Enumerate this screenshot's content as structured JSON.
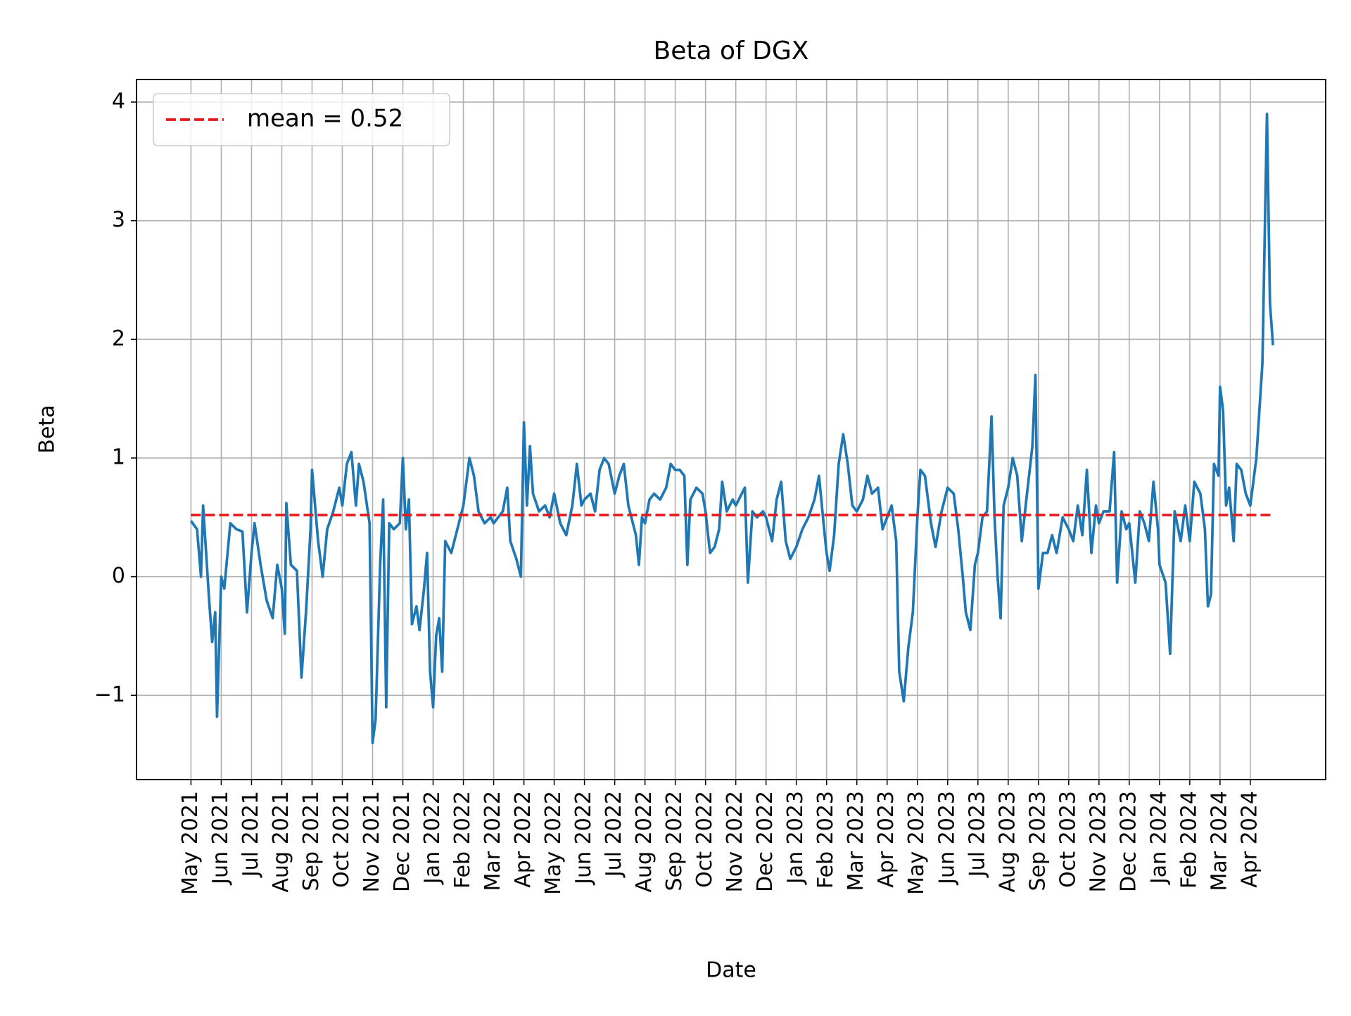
{
  "chart_data": {
    "type": "line",
    "title": "Beta of DGX",
    "x_label": "Date",
    "y_label": "Beta",
    "x": [
      0,
      0.2,
      0.33,
      0.4,
      0.6,
      0.7,
      0.8,
      0.86,
      1.0,
      1.1,
      1.3,
      1.5,
      1.7,
      1.85,
      2.0,
      2.1,
      2.3,
      2.5,
      2.7,
      2.85,
      3.0,
      3.1,
      3.15,
      3.3,
      3.5,
      3.65,
      3.8,
      3.95,
      4.0,
      4.2,
      4.35,
      4.5,
      4.7,
      4.9,
      5.0,
      5.15,
      5.3,
      5.45,
      5.55,
      5.7,
      5.9,
      6.0,
      6.1,
      6.25,
      6.35,
      6.45,
      6.55,
      6.7,
      6.9,
      7.0,
      7.1,
      7.2,
      7.3,
      7.45,
      7.55,
      7.7,
      7.8,
      7.9,
      8.0,
      8.1,
      8.2,
      8.3,
      8.4,
      8.6,
      8.8,
      9.0,
      9.1,
      9.2,
      9.35,
      9.5,
      9.7,
      9.9,
      10.0,
      10.3,
      10.45,
      10.55,
      10.75,
      10.9,
      11.0,
      11.1,
      11.2,
      11.3,
      11.5,
      11.7,
      11.85,
      12.0,
      12.2,
      12.4,
      12.6,
      12.75,
      12.9,
      13.0,
      13.2,
      13.35,
      13.5,
      13.65,
      13.8,
      14.0,
      14.15,
      14.3,
      14.45,
      14.6,
      14.7,
      14.8,
      14.9,
      15.0,
      15.15,
      15.3,
      15.5,
      15.7,
      15.85,
      16.0,
      16.15,
      16.3,
      16.4,
      16.5,
      16.7,
      16.9,
      17.0,
      17.15,
      17.3,
      17.45,
      17.55,
      17.7,
      17.9,
      18.0,
      18.3,
      18.4,
      18.55,
      18.7,
      18.9,
      19.0,
      19.2,
      19.35,
      19.5,
      19.65,
      19.8,
      20.0,
      20.2,
      20.4,
      20.6,
      20.75,
      20.9,
      21.0,
      21.1,
      21.25,
      21.4,
      21.55,
      21.7,
      21.85,
      22.0,
      22.2,
      22.35,
      22.5,
      22.7,
      22.85,
      23.0,
      23.15,
      23.3,
      23.4,
      23.55,
      23.7,
      23.85,
      24.0,
      24.1,
      24.25,
      24.45,
      24.6,
      24.8,
      25.0,
      25.2,
      25.35,
      25.5,
      25.6,
      25.75,
      25.9,
      26.0,
      26.15,
      26.3,
      26.45,
      26.55,
      26.65,
      26.75,
      26.85,
      27.0,
      27.15,
      27.3,
      27.45,
      27.6,
      27.8,
      27.9,
      28.0,
      28.15,
      28.3,
      28.45,
      28.6,
      28.8,
      29.0,
      29.15,
      29.3,
      29.45,
      29.6,
      29.75,
      29.9,
      30.0,
      30.15,
      30.35,
      30.5,
      30.6,
      30.75,
      30.9,
      31.0,
      31.2,
      31.35,
      31.5,
      31.65,
      31.8,
      31.95,
      32.0,
      32.2,
      32.35,
      32.5,
      32.7,
      32.85,
      33.0,
      33.15,
      33.35,
      33.5,
      33.6,
      33.7,
      33.8,
      33.95,
      34.0,
      34.1,
      34.2,
      34.3,
      34.45,
      34.55,
      34.7,
      34.85,
      35.0,
      35.2,
      35.4,
      35.55,
      35.65,
      35.75
    ],
    "series": [
      {
        "color": "#1f77b4",
        "values": [
          0.47,
          0.4,
          0.0,
          0.6,
          -0.2,
          -0.55,
          -0.3,
          -1.18,
          0.0,
          -0.1,
          0.45,
          0.4,
          0.38,
          -0.3,
          0.2,
          0.45,
          0.1,
          -0.2,
          -0.35,
          0.1,
          -0.1,
          -0.48,
          0.62,
          0.1,
          0.05,
          -0.85,
          -0.3,
          0.4,
          0.9,
          0.3,
          0.0,
          0.4,
          0.55,
          0.75,
          0.6,
          0.95,
          1.05,
          0.6,
          0.95,
          0.8,
          0.45,
          -1.4,
          -1.2,
          0.1,
          0.65,
          -1.1,
          0.45,
          0.4,
          0.45,
          1.0,
          0.4,
          0.65,
          -0.4,
          -0.25,
          -0.45,
          -0.1,
          0.2,
          -0.8,
          -1.1,
          -0.5,
          -0.35,
          -0.8,
          0.3,
          0.2,
          0.4,
          0.6,
          0.8,
          1.0,
          0.85,
          0.55,
          0.45,
          0.5,
          0.45,
          0.55,
          0.75,
          0.3,
          0.15,
          0.0,
          1.3,
          0.6,
          1.1,
          0.7,
          0.55,
          0.6,
          0.5,
          0.7,
          0.45,
          0.35,
          0.6,
          0.95,
          0.6,
          0.65,
          0.7,
          0.55,
          0.9,
          1.0,
          0.95,
          0.7,
          0.85,
          0.95,
          0.6,
          0.45,
          0.35,
          0.1,
          0.5,
          0.45,
          0.65,
          0.7,
          0.65,
          0.75,
          0.95,
          0.9,
          0.9,
          0.85,
          0.1,
          0.65,
          0.75,
          0.7,
          0.55,
          0.2,
          0.25,
          0.4,
          0.8,
          0.55,
          0.65,
          0.6,
          0.75,
          -0.05,
          0.55,
          0.5,
          0.55,
          0.5,
          0.3,
          0.65,
          0.8,
          0.3,
          0.15,
          0.25,
          0.4,
          0.5,
          0.65,
          0.85,
          0.45,
          0.2,
          0.05,
          0.35,
          0.95,
          1.2,
          0.95,
          0.6,
          0.55,
          0.65,
          0.85,
          0.7,
          0.75,
          0.4,
          0.5,
          0.6,
          0.3,
          -0.8,
          -1.05,
          -0.6,
          -0.3,
          0.5,
          0.9,
          0.85,
          0.45,
          0.25,
          0.55,
          0.75,
          0.7,
          0.4,
          0.0,
          -0.3,
          -0.45,
          0.1,
          0.2,
          0.5,
          0.55,
          1.35,
          0.5,
          0.0,
          -0.35,
          0.6,
          0.75,
          1.0,
          0.85,
          0.3,
          0.65,
          1.1,
          1.7,
          -0.1,
          0.2,
          0.2,
          0.35,
          0.2,
          0.5,
          0.4,
          0.3,
          0.6,
          0.35,
          0.9,
          0.2,
          0.6,
          0.45,
          0.55,
          0.55,
          1.05,
          -0.05,
          0.55,
          0.4,
          0.45,
          -0.05,
          0.55,
          0.45,
          0.3,
          0.8,
          0.4,
          0.1,
          -0.05,
          -0.65,
          0.55,
          0.3,
          0.6,
          0.3,
          0.8,
          0.7,
          0.4,
          -0.25,
          -0.15,
          0.95,
          0.85,
          1.6,
          1.4,
          0.6,
          0.75,
          0.3,
          0.95,
          0.9,
          0.7,
          0.6,
          1.0,
          1.8,
          3.9,
          2.3,
          1.95
        ]
      }
    ],
    "mean_line": {
      "label": "mean = 0.52",
      "value": 0.52,
      "color": "#e41a1c"
    },
    "xlim": [
      -1.8,
      37.49
    ],
    "ylim": [
      -1.71,
      4.19
    ],
    "xticks": [
      {
        "value": 0,
        "label": "May 2021"
      },
      {
        "value": 1,
        "label": "Jun 2021"
      },
      {
        "value": 2,
        "label": "Jul 2021"
      },
      {
        "value": 3,
        "label": "Aug 2021"
      },
      {
        "value": 4,
        "label": "Sep 2021"
      },
      {
        "value": 5,
        "label": "Oct 2021"
      },
      {
        "value": 6,
        "label": "Nov 2021"
      },
      {
        "value": 7,
        "label": "Dec 2021"
      },
      {
        "value": 8,
        "label": "Jan 2022"
      },
      {
        "value": 9,
        "label": "Feb 2022"
      },
      {
        "value": 10,
        "label": "Mar 2022"
      },
      {
        "value": 11,
        "label": "Apr 2022"
      },
      {
        "value": 12,
        "label": "May 2022"
      },
      {
        "value": 13,
        "label": "Jun 2022"
      },
      {
        "value": 14,
        "label": "Jul 2022"
      },
      {
        "value": 15,
        "label": "Aug 2022"
      },
      {
        "value": 16,
        "label": "Sep 2022"
      },
      {
        "value": 17,
        "label": "Oct 2022"
      },
      {
        "value": 18,
        "label": "Nov 2022"
      },
      {
        "value": 19,
        "label": "Dec 2022"
      },
      {
        "value": 20,
        "label": "Jan 2023"
      },
      {
        "value": 21,
        "label": "Feb 2023"
      },
      {
        "value": 22,
        "label": "Mar 2023"
      },
      {
        "value": 23,
        "label": "Apr 2023"
      },
      {
        "value": 24,
        "label": "May 2023"
      },
      {
        "value": 25,
        "label": "Jun 2023"
      },
      {
        "value": 26,
        "label": "Jul 2023"
      },
      {
        "value": 27,
        "label": "Aug 2023"
      },
      {
        "value": 28,
        "label": "Sep 2023"
      },
      {
        "value": 29,
        "label": "Oct 2023"
      },
      {
        "value": 30,
        "label": "Nov 2023"
      },
      {
        "value": 31,
        "label": "Dec 2023"
      },
      {
        "value": 32,
        "label": "Jan 2024"
      },
      {
        "value": 33,
        "label": "Feb 2024"
      },
      {
        "value": 34,
        "label": "Mar 2024"
      },
      {
        "value": 35,
        "label": "Apr 2024"
      }
    ],
    "yticks": [
      {
        "value": -1,
        "label": "−1"
      },
      0,
      1,
      2,
      3,
      4
    ],
    "grid": true,
    "legend": "upper left"
  }
}
